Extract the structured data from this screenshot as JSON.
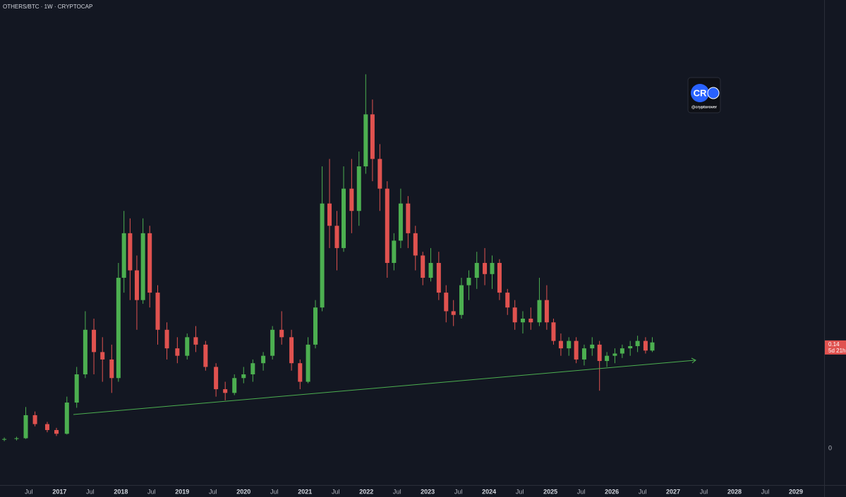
{
  "chart_data": {
    "type": "candlestick",
    "title": "OTHERS/BTC · 1W · CRYPTOCAP",
    "x": [
      2016.1,
      2016.3,
      2016.45,
      2016.6,
      2016.8,
      2016.95,
      2017.12,
      2017.28,
      2017.42,
      2017.56,
      2017.7,
      2017.85,
      2017.96,
      2018.05,
      2018.15,
      2018.26,
      2018.36,
      2018.47,
      2018.6,
      2018.75,
      2018.92,
      2019.08,
      2019.22,
      2019.38,
      2019.55,
      2019.7,
      2019.85,
      2020.0,
      2020.15,
      2020.32,
      2020.47,
      2020.62,
      2020.78,
      2020.92,
      2021.05,
      2021.17,
      2021.28,
      2021.4,
      2021.52,
      2021.63,
      2021.76,
      2021.88,
      2021.99,
      2022.1,
      2022.22,
      2022.34,
      2022.45,
      2022.56,
      2022.68,
      2022.8,
      2022.92,
      2023.05,
      2023.18,
      2023.3,
      2023.42,
      2023.55,
      2023.67,
      2023.8,
      2023.93,
      2024.05,
      2024.17,
      2024.3,
      2024.42,
      2024.55,
      2024.68,
      2024.82,
      2024.94,
      2025.05,
      2025.17,
      2025.3,
      2025.42,
      2025.55,
      2025.68,
      2025.8,
      2025.92,
      2026.05,
      2026.17,
      2026.3,
      2026.42,
      2026.55,
      2026.66
    ],
    "open": [
      0.012,
      0.013,
      0.014,
      0.045,
      0.033,
      0.025,
      0.02,
      0.062,
      0.1,
      0.16,
      0.13,
      0.12,
      0.095,
      0.23,
      0.29,
      0.24,
      0.2,
      0.29,
      0.21,
      0.16,
      0.135,
      0.125,
      0.15,
      0.14,
      0.11,
      0.08,
      0.075,
      0.095,
      0.1,
      0.115,
      0.125,
      0.16,
      0.15,
      0.115,
      0.09,
      0.14,
      0.19,
      0.33,
      0.3,
      0.27,
      0.35,
      0.32,
      0.38,
      0.45,
      0.39,
      0.35,
      0.25,
      0.28,
      0.33,
      0.29,
      0.26,
      0.23,
      0.25,
      0.21,
      0.185,
      0.18,
      0.22,
      0.23,
      0.25,
      0.235,
      0.25,
      0.21,
      0.19,
      0.17,
      0.175,
      0.17,
      0.2,
      0.17,
      0.145,
      0.135,
      0.145,
      0.12,
      0.135,
      0.14,
      0.118,
      0.125,
      0.128,
      0.135,
      0.138,
      0.145,
      0.132
    ],
    "high": [
      0.015,
      0.016,
      0.056,
      0.05,
      0.036,
      0.028,
      0.07,
      0.11,
      0.185,
      0.175,
      0.15,
      0.14,
      0.25,
      0.32,
      0.31,
      0.26,
      0.31,
      0.3,
      0.22,
      0.17,
      0.15,
      0.155,
      0.165,
      0.145,
      0.115,
      0.09,
      0.1,
      0.11,
      0.12,
      0.13,
      0.165,
      0.185,
      0.16,
      0.12,
      0.15,
      0.2,
      0.38,
      0.39,
      0.32,
      0.38,
      0.39,
      0.4,
      0.504,
      0.47,
      0.41,
      0.36,
      0.29,
      0.35,
      0.34,
      0.3,
      0.265,
      0.27,
      0.265,
      0.22,
      0.2,
      0.23,
      0.24,
      0.265,
      0.27,
      0.26,
      0.255,
      0.215,
      0.2,
      0.185,
      0.19,
      0.23,
      0.22,
      0.175,
      0.155,
      0.15,
      0.15,
      0.14,
      0.15,
      0.145,
      0.13,
      0.135,
      0.14,
      0.145,
      0.152,
      0.15,
      0.15
    ],
    "low": [
      0.01,
      0.011,
      0.013,
      0.03,
      0.022,
      0.017,
      0.019,
      0.055,
      0.095,
      0.1,
      0.09,
      0.075,
      0.09,
      0.21,
      0.2,
      0.16,
      0.195,
      0.19,
      0.14,
      0.12,
      0.115,
      0.12,
      0.13,
      0.105,
      0.07,
      0.065,
      0.072,
      0.088,
      0.09,
      0.105,
      0.12,
      0.14,
      0.105,
      0.08,
      0.088,
      0.135,
      0.185,
      0.27,
      0.24,
      0.265,
      0.29,
      0.3,
      0.37,
      0.36,
      0.32,
      0.23,
      0.24,
      0.27,
      0.27,
      0.24,
      0.22,
      0.225,
      0.2,
      0.17,
      0.165,
      0.175,
      0.2,
      0.215,
      0.22,
      0.215,
      0.2,
      0.18,
      0.16,
      0.155,
      0.16,
      0.165,
      0.16,
      0.14,
      0.125,
      0.125,
      0.115,
      0.112,
      0.125,
      0.078,
      0.11,
      0.115,
      0.122,
      0.125,
      0.13,
      0.128,
      0.13
    ],
    "close": [
      0.013,
      0.014,
      0.045,
      0.033,
      0.025,
      0.02,
      0.062,
      0.1,
      0.16,
      0.13,
      0.12,
      0.095,
      0.23,
      0.29,
      0.24,
      0.2,
      0.29,
      0.21,
      0.16,
      0.135,
      0.125,
      0.15,
      0.14,
      0.11,
      0.08,
      0.075,
      0.095,
      0.1,
      0.115,
      0.125,
      0.16,
      0.15,
      0.115,
      0.09,
      0.14,
      0.19,
      0.33,
      0.3,
      0.27,
      0.35,
      0.32,
      0.38,
      0.45,
      0.39,
      0.35,
      0.25,
      0.28,
      0.33,
      0.29,
      0.26,
      0.23,
      0.25,
      0.21,
      0.185,
      0.18,
      0.22,
      0.23,
      0.25,
      0.235,
      0.25,
      0.21,
      0.19,
      0.17,
      0.175,
      0.17,
      0.2,
      0.17,
      0.145,
      0.135,
      0.145,
      0.12,
      0.135,
      0.14,
      0.118,
      0.125,
      0.128,
      0.135,
      0.138,
      0.145,
      0.132,
      0.143
    ],
    "up_color": "#4caf50",
    "down_color": "#e0524f",
    "xlim": [
      2016.03,
      2029.46
    ],
    "ylim": [
      -0.049,
      0.604
    ],
    "xticks": [
      {
        "value": 2016.5,
        "label": "Jul"
      },
      2017,
      {
        "value": 2017.5,
        "label": "Jul"
      },
      2018,
      {
        "value": 2018.5,
        "label": "Jul"
      },
      2019,
      {
        "value": 2019.5,
        "label": "Jul"
      },
      2020,
      {
        "value": 2020.5,
        "label": "Jul"
      },
      2021,
      {
        "value": 2021.5,
        "label": "Jul"
      },
      2022,
      {
        "value": 2022.5,
        "label": "Jul"
      },
      2023,
      {
        "value": 2023.5,
        "label": "Jul"
      },
      2024,
      {
        "value": 2024.5,
        "label": "Jul"
      },
      2025,
      {
        "value": 2025.5,
        "label": "Jul"
      },
      2026,
      {
        "value": 2026.5,
        "label": "Jul"
      },
      2027,
      {
        "value": 2027.5,
        "label": "Jul"
      },
      2028,
      {
        "value": 2028.5,
        "label": "Jul"
      },
      2029
    ],
    "yticks": [
      0
    ],
    "last_price": 0.14,
    "countdown": "5d 21h",
    "watermark": {
      "logo": "CR",
      "handle": "@cryptorover"
    }
  }
}
